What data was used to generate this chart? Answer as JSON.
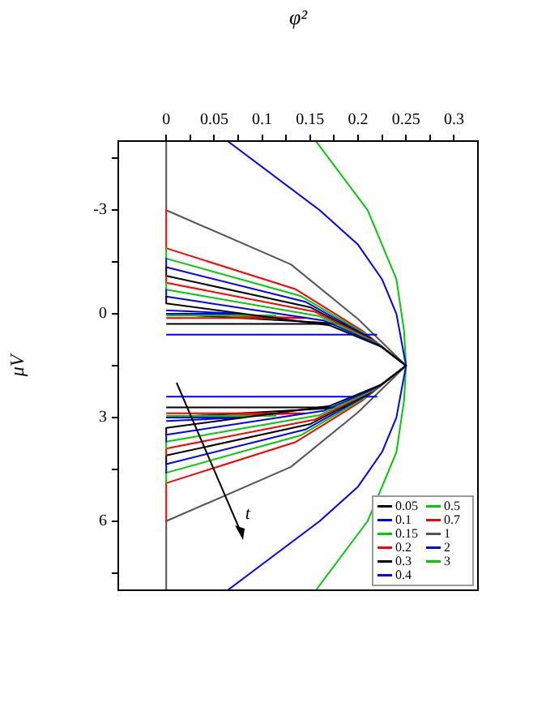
{
  "chart_data": {
    "type": "line",
    "xlabel": "φ²",
    "ylabel": "μV",
    "legend": "bottom right",
    "marker": "none",
    "grid": false,
    "ylim": [
      8,
      -5
    ],
    "yticks": [
      {
        "value": -4.5,
        "label": null
      },
      -3,
      {
        "value": -1.5,
        "label": null
      },
      0,
      {
        "value": 1.5,
        "label": null
      },
      3,
      {
        "value": 4.5,
        "label": null
      },
      6,
      {
        "value": 7.5,
        "label": null
      }
    ],
    "xlim": [
      -0.05,
      0.325
    ],
    "xticks": [
      0,
      {
        "value": 0.025,
        "label": null
      },
      0.05,
      {
        "value": 0.075,
        "label": null
      },
      0.1,
      {
        "value": 0.125,
        "label": null
      },
      0.15,
      {
        "value": 0.175,
        "label": null
      },
      0.2,
      {
        "value": 0.225,
        "label": null
      },
      0.25,
      {
        "value": 0.275,
        "label": null
      },
      0.3
    ],
    "annotations": [
      "t"
    ],
    "series": [
      {
        "name": "0.05",
        "color": "#000000",
        "values": [
          -0.5,
          -0.3,
          0.33,
          0.96,
          1.5,
          2.04,
          2.67,
          3.3,
          3.5
        ],
        "x": [
          0,
          0,
          0.17,
          0.225,
          0.25,
          0.225,
          0.17,
          0,
          0
        ]
      },
      {
        "name": "0.1",
        "color": "#0000ff",
        "values": [
          -0.7,
          -0.5,
          0.2,
          0.9,
          1.5,
          2.1,
          2.8,
          3.5,
          3.7,
          null,
          -0.1,
          0,
          0,
          null,
          3,
          3,
          3.1
        ],
        "x": [
          0,
          0,
          0.165,
          0.222,
          0.25,
          0.222,
          0.165,
          0,
          0,
          null,
          0,
          0.08,
          0,
          null,
          0,
          0.08,
          0
        ]
      },
      {
        "name": "0.15",
        "color": "#00cc00",
        "values": [
          -0.9,
          -0.7,
          0.07,
          0.84,
          1.5,
          2.16,
          2.93,
          3.7,
          3.9,
          null,
          0,
          0.05,
          0.05,
          null,
          2.95,
          2.95,
          3
        ],
        "x": [
          0,
          0,
          0.16,
          0.219,
          0.25,
          0.219,
          0.16,
          0,
          0,
          null,
          0,
          0.114,
          0,
          null,
          0,
          0.114,
          0
        ]
      },
      {
        "name": "0.2",
        "color": "#ff0000",
        "values": [
          -1.1,
          -0.9,
          -0.06,
          0.78,
          1.5,
          2.22,
          3.06,
          3.9,
          4.1,
          null,
          0,
          0.12,
          0.12,
          null,
          2.88,
          2.88,
          3
        ],
        "x": [
          0,
          0,
          0.155,
          0.216,
          0.25,
          0.216,
          0.155,
          0,
          0,
          null,
          0,
          0.144,
          0,
          null,
          0,
          0.144,
          0
        ]
      },
      {
        "name": "0.3",
        "color": "#000000",
        "values": [
          -1.35,
          -1.1,
          -0.19,
          0.72,
          1.5,
          2.28,
          3.19,
          4.1,
          4.35,
          null,
          0,
          0.29,
          0.29,
          null,
          2.71,
          2.71,
          3
        ],
        "x": [
          0,
          0,
          0.15,
          0.213,
          0.25,
          0.213,
          0.15,
          0,
          0,
          null,
          0,
          0.186,
          0,
          null,
          0,
          0.186,
          0
        ]
      },
      {
        "name": "0.4",
        "color": "#0000ff",
        "values": [
          -1.6,
          -1.35,
          -0.35,
          0.65,
          1.5,
          2.35,
          3.35,
          4.35,
          4.6,
          null,
          2.4,
          2.4,
          2.4,
          null,
          0.6,
          0.6,
          0.6
        ],
        "x": [
          0,
          0,
          0.145,
          0.21,
          0.25,
          0.21,
          0.145,
          0,
          0,
          null,
          0.22,
          0.11,
          0,
          null,
          0,
          0.11,
          0.22
        ]
      },
      {
        "name": "0.5",
        "color": "#00cc00",
        "values": [
          -1.9,
          -1.6,
          -0.52,
          0.57,
          1.5,
          2.43,
          3.52,
          4.6,
          4.9
        ],
        "x": [
          0,
          0,
          0.14,
          0.207,
          0.25,
          0.207,
          0.14,
          0,
          0
        ]
      },
      {
        "name": "0.7",
        "color": "#ff0000",
        "values": [
          -3,
          -1.9,
          -0.71,
          0.48,
          1.5,
          2.52,
          3.71,
          4.9,
          6
        ],
        "x": [
          0,
          0,
          0.135,
          0.204,
          0.25,
          0.204,
          0.135,
          0,
          0
        ]
      },
      {
        "name": "1",
        "color": "#555555",
        "values": [
          -5,
          -3,
          -1.43,
          0.15,
          1.5,
          2.85,
          4.43,
          6,
          8
        ],
        "x": [
          0,
          0,
          0.13,
          0.2,
          0.25,
          0.2,
          0.13,
          0,
          0
        ]
      },
      {
        "name": "2",
        "color": "#0000ff",
        "values": [
          -5,
          -3,
          -2,
          -1,
          0,
          1.5,
          3,
          4,
          5,
          6,
          8
        ],
        "x": [
          0.064,
          0.16,
          0.2,
          0.225,
          0.24,
          0.25,
          0.24,
          0.225,
          0.2,
          0.16,
          0.064
        ]
      },
      {
        "name": "3",
        "color": "#00cc00",
        "values": [
          -5,
          -3,
          -1,
          0.5,
          1.5,
          2.5,
          4,
          6,
          8
        ],
        "x": [
          0.156,
          0.21,
          0.24,
          0.248,
          0.25,
          0.248,
          0.24,
          0.21,
          0.156
        ]
      }
    ]
  }
}
